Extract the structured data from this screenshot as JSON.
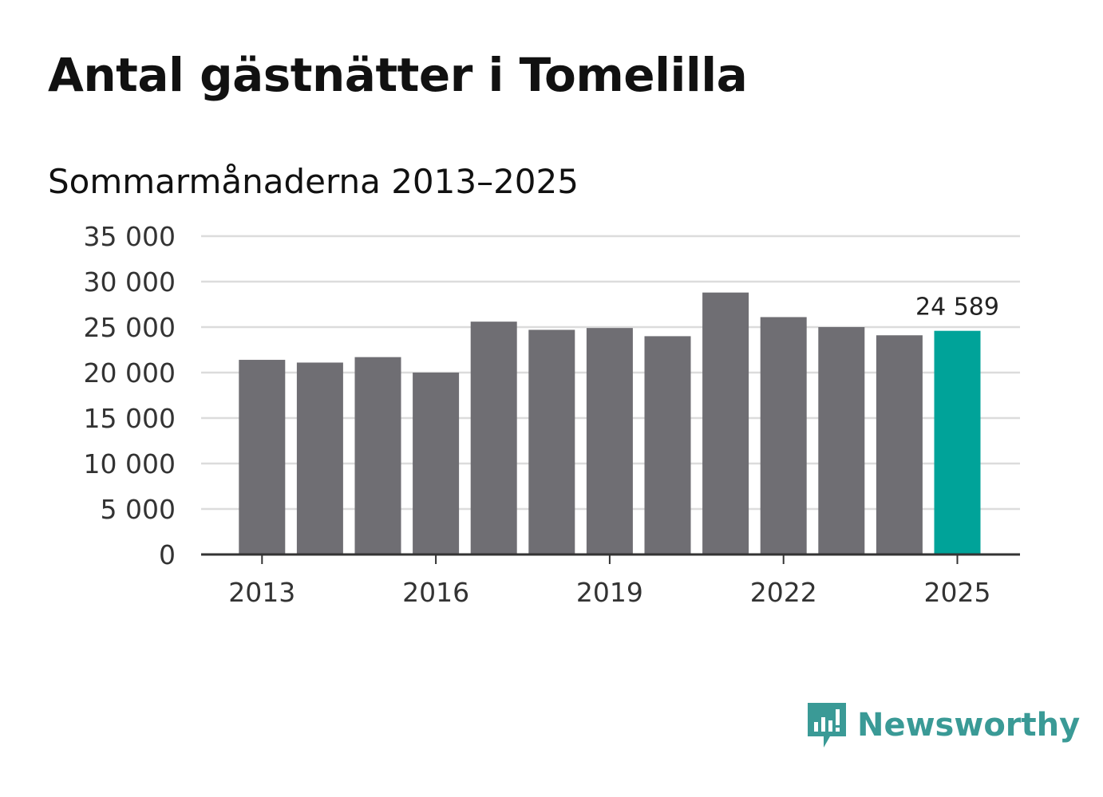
{
  "header": {
    "title": "Antal gästnätter i Tomelilla",
    "subtitle": "Sommarmånaderna 2013–2025"
  },
  "brand": {
    "name": "Newsworthy",
    "icon": "newsworthy-logo-icon",
    "color": "#3a9a96"
  },
  "chart_data": {
    "type": "bar",
    "title": "Antal gästnätter i Tomelilla",
    "subtitle": "Sommarmånaderna 2013–2025",
    "categories": [
      "2013",
      "2014",
      "2015",
      "2016",
      "2017",
      "2018",
      "2019",
      "2020",
      "2021",
      "2022",
      "2023",
      "2024",
      "2025"
    ],
    "values": [
      21400,
      21100,
      21700,
      20000,
      25600,
      24700,
      24900,
      24000,
      28800,
      26100,
      25000,
      24100,
      24589
    ],
    "highlight_index": 12,
    "highlight_label": "24 589",
    "bar_color": "#6f6e73",
    "highlight_color": "#00a399",
    "xlabel": "",
    "ylabel": "",
    "ylim": [
      0,
      35000
    ],
    "y_ticks": [
      0,
      5000,
      10000,
      15000,
      20000,
      25000,
      30000,
      35000
    ],
    "y_tick_labels": [
      "0",
      "5 000",
      "10 000",
      "15 000",
      "20 000",
      "25 000",
      "30 000",
      "35 000"
    ],
    "x_tick_labels": [
      "2013",
      "2016",
      "2019",
      "2022",
      "2025"
    ],
    "grid": true,
    "legend": "none"
  }
}
